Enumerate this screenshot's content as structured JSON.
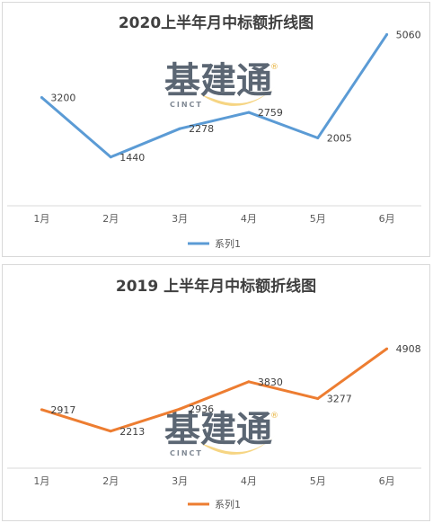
{
  "chart_data": [
    {
      "type": "line",
      "title": "2020上半年月中标额折线图",
      "categories": [
        "1月",
        "2月",
        "3月",
        "4月",
        "5月",
        "6月"
      ],
      "series": [
        {
          "name": "系列1",
          "values": [
            3200,
            1440,
            2278,
            2759,
            2005,
            5060
          ]
        }
      ],
      "data_labels": [
        "3200",
        "1440",
        "2278",
        "2759",
        "2005",
        "5060"
      ],
      "ylim": [
        0,
        6000
      ],
      "grid": false,
      "legend": "bottom",
      "color": "#5b9bd5"
    },
    {
      "type": "line",
      "title": "2019 上半年月中标额折线图",
      "categories": [
        "1月",
        "2月",
        "3月",
        "4月",
        "5月",
        "6月"
      ],
      "series": [
        {
          "name": "系列1",
          "values": [
            2917,
            2213,
            2936,
            3830,
            3277,
            4908
          ]
        }
      ],
      "data_labels": [
        "2917",
        "2213",
        "2936",
        "3830",
        "3277",
        "4908"
      ],
      "ylim": [
        1000,
        5500
      ],
      "grid": false,
      "legend": "bottom",
      "color": "#ed7d31"
    }
  ],
  "watermark": {
    "text": "基建通",
    "subtext": "CINCT",
    "mark": "®",
    "colors": {
      "text": "#5b6673",
      "swoosh": "#f3c75a"
    }
  }
}
